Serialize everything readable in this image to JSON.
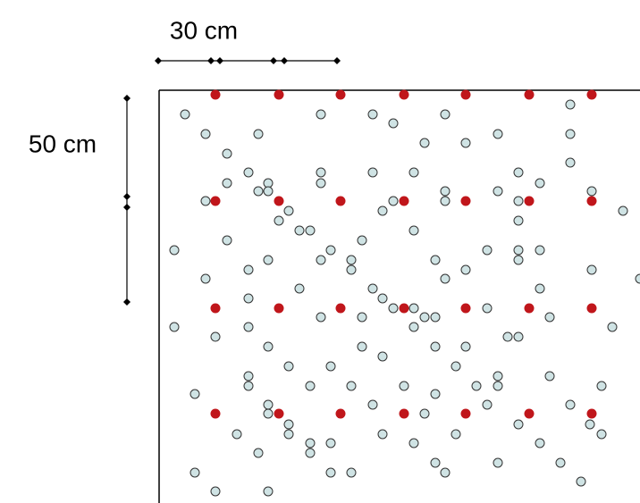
{
  "dimensions": {
    "horizontal": "30 cm",
    "vertical": "50 cm"
  }
}
